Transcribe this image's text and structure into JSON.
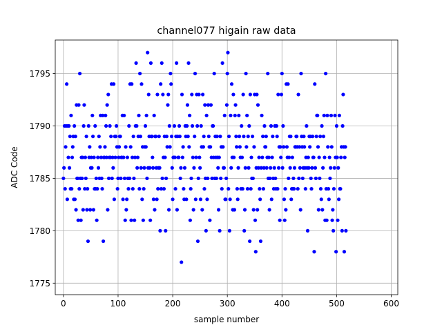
{
  "chart_data": {
    "type": "scatter",
    "title": "channel077 higain raw data",
    "xlabel": "sample number",
    "ylabel": "ADC Code",
    "xlim": [
      -15,
      612
    ],
    "ylim": [
      1773.9,
      1798.2
    ],
    "xticks": [
      0,
      100,
      200,
      300,
      400,
      500,
      600
    ],
    "yticks": [
      1775,
      1780,
      1785,
      1790,
      1795
    ],
    "grid": true,
    "marker_color": "#0000ff",
    "series": [
      {
        "values": [
          1785,
          1786,
          1790,
          1784,
          1788,
          1790,
          1794,
          1783,
          1790,
          1787,
          1790,
          1786,
          1789,
          1784,
          1791,
          1784,
          1787,
          1788,
          1789,
          1783,
          1790,
          1783,
          1789,
          1782,
          1792,
          1785,
          1785,
          1781,
          1792,
          1784,
          1795,
          1785,
          1781,
          1787,
          1785,
          1787,
          1782,
          1790,
          1792,
          1784,
          1787,
          1785,
          1789,
          1782,
          1784,
          1779,
          1790,
          1787,
          1788,
          1782,
          1786,
          1787,
          1786,
          1791,
          1789,
          1782,
          1787,
          1784,
          1790,
          1784,
          1785,
          1781,
          1784,
          1787,
          1786,
          1789,
          1785,
          1788,
          1791,
          1787,
          1785,
          1784,
          1791,
          1779,
          1787,
          1787,
          1788,
          1791,
          1790,
          1787,
          1792,
          1782,
          1793,
          1785,
          1787,
          1790,
          1787,
          1789,
          1794,
          1785,
          1787,
          1786,
          1794,
          1783,
          1789,
          1787,
          1789,
          1790,
          1788,
          1784,
          1785,
          1787,
          1788,
          1789,
          1789,
          1785,
          1787,
          1787,
          1791,
          1783,
          1787,
          1791,
          1785,
          1781,
          1788,
          1782,
          1783,
          1787,
          1785,
          1784,
          1790,
          1785,
          1794,
          1788,
          1781,
          1794,
          1787,
          1784,
          1789,
          1785,
          1781,
          1787,
          1790,
          1796,
          1790,
          1786,
          1787,
          1789,
          1791,
          1784,
          1795,
          1789,
          1786,
          1794,
          1783,
          1788,
          1781,
          1784,
          1786,
          1788,
          1790,
          1788,
          1791,
          1785,
          1797,
          1786,
          1793,
          1789,
          1786,
          1781,
          1796,
          1789,
          1789,
          1787,
          1786,
          1783,
          1791,
          1782,
          1789,
          1789,
          1786,
          1783,
          1793,
          1784,
          1786,
          1789,
          1786,
          1780,
          1794,
          1784,
          1796,
          1785,
          1793,
          1787,
          1784,
          1789,
          1787,
          1780,
          1785,
          1789,
          1788,
          1792,
          1793,
          1782,
          1790,
          1788,
          1795,
          1794,
          1789,
          1786,
          1783,
          1787,
          1787,
          1790,
          1787,
          1784,
          1789,
          1796,
          1782,
          1789,
          1787,
          1787,
          1790,
          1789,
          1785,
          1786,
          1777,
          1793,
          1787,
          1788,
          1784,
          1783,
          1786,
          1790,
          1789,
          1783,
          1790,
          1792,
          1789,
          1796,
          1788,
          1791,
          1781,
          1784,
          1785,
          1793,
          1790,
          1787,
          1782,
          1786,
          1789,
          1795,
          1783,
          1787,
          1793,
          1790,
          1779,
          1785,
          1793,
          1787,
          1786,
          1783,
          1790,
          1788,
          1782,
          1793,
          1788,
          1789,
          1784,
          1792,
          1785,
          1780,
          1791,
          1783,
          1785,
          1792,
          1789,
          1788,
          1781,
          1788,
          1792,
          1787,
          1785,
          1790,
          1790,
          1787,
          1795,
          1785,
          1789,
          1787,
          1785,
          1789,
          1787,
          1786,
          1782,
          1787,
          1780,
          1789,
          1785,
          1788,
          1784,
          1796,
          1788,
          1786,
          1786,
          1791,
          1783,
          1783,
          1785,
          1792,
          1795,
          1797,
          1784,
          1789,
          1780,
          1783,
          1791,
          1786,
          1794,
          1787,
          1782,
          1793,
          1787,
          1782,
          1791,
          1792,
          1789,
          1788,
          1784,
          1783,
          1786,
          1791,
          1789,
          1788,
          1787,
          1784,
          1790,
          1787,
          1784,
          1793,
          1789,
          1780,
          1782,
          1786,
          1795,
          1788,
          1791,
          1784,
          1789,
          1786,
          1790,
          1779,
          1793,
          1784,
          1787,
          1785,
          1789,
          1785,
          1782,
          1788,
          1793,
          1781,
          1778,
          1786,
          1793,
          1782,
          1792,
          1786,
          1787,
          1784,
          1783,
          1779,
          1786,
          1791,
          1787,
          1789,
          1784,
          1786,
          1790,
          1788,
          1788,
          1789,
          1786,
          1787,
          1795,
          1785,
          1787,
          1782,
          1785,
          1786,
          1790,
          1783,
          1787,
          1789,
          1785,
          1784,
          1786,
          1790,
          1785,
          1784,
          1790,
          1789,
          1784,
          1793,
          1786,
          1788,
          1781,
          1788,
          1787,
          1793,
          1795,
          1786,
          1790,
          1788,
          1783,
          1781,
          1784,
          1782,
          1794,
          1788,
          1787,
          1794,
          1785,
          1787,
          1789,
          1786,
          1789,
          1783,
          1784,
          1787,
          1784,
          1785,
          1784,
          1786,
          1788,
          1788,
          1789,
          1789,
          1788,
          1784,
          1793,
          1785,
          1788,
          1786,
          1782,
          1795,
          1789,
          1788,
          1785,
          1786,
          1789,
          1788,
          1786,
          1784,
          1787,
          1790,
          1786,
          1780,
          1787,
          1786,
          1789,
          1788,
          1789,
          1785,
          1784,
          1786,
          1789,
          1787,
          1787,
          1778,
          1794,
          1786,
          1785,
          1789,
          1791,
          1791,
          1788,
          1782,
          1787,
          1785,
          1789,
          1784,
          1783,
          1790,
          1782,
          1786,
          1789,
          1791,
          1787,
          1781,
          1795,
          1784,
          1781,
          1791,
          1788,
          1784,
          1783,
          1787,
          1785,
          1786,
          1791,
          1788,
          1781,
          1782,
          1780,
          1784,
          1786,
          1791,
          1787,
          1778,
          1790,
          1787,
          1781,
          1786,
          1783,
          1791,
          1784,
          1784,
          1787,
          1788,
          1780,
          1790,
          1793,
          1788,
          1778,
          1787,
          1788,
          1780
        ],
        "note": ""
      }
    ]
  }
}
